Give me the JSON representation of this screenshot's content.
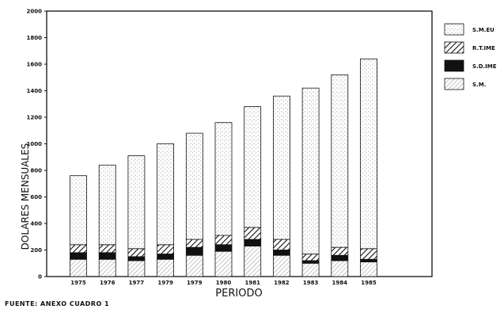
{
  "chart_data": {
    "type": "bar",
    "stacked": true,
    "categories": [
      "1975",
      "1976",
      "1977",
      "1979",
      "1979",
      "1980",
      "1981",
      "1982",
      "1983",
      "1984",
      "1985"
    ],
    "series": [
      {
        "name": "S.M.",
        "values": [
          130,
          130,
          120,
          130,
          160,
          190,
          230,
          160,
          100,
          120,
          110
        ]
      },
      {
        "name": "S.D.IME",
        "values": [
          50,
          50,
          30,
          40,
          60,
          50,
          50,
          40,
          20,
          40,
          20
        ]
      },
      {
        "name": "R.T.IME",
        "values": [
          60,
          60,
          60,
          70,
          60,
          70,
          90,
          80,
          50,
          60,
          80
        ]
      },
      {
        "name": "S.M.EU",
        "values": [
          520,
          600,
          700,
          760,
          800,
          850,
          910,
          1080,
          1250,
          1300,
          1430
        ]
      }
    ],
    "yticks": [
      "0",
      "200",
      "400",
      "600",
      "800",
      "1000",
      "1200",
      "1400",
      "1600",
      "1800",
      "2000"
    ],
    "ylim": [
      0,
      2000
    ],
    "xlabel": "PERIODO",
    "ylabel": "DOLARES MENSUALES",
    "legend": [
      "S.M.EU",
      "R.T.IME",
      "S.D.IME",
      "S.M."
    ],
    "legend_position": "right"
  },
  "source": "FUENTE: ANEXO CUADRO 1"
}
